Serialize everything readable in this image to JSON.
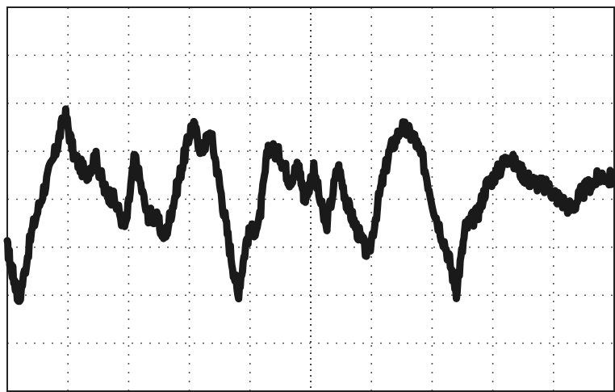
{
  "chart_data": {
    "type": "line",
    "grid": {
      "visible": true,
      "style": "dotted",
      "x_divisions": 10,
      "y_divisions": 8
    },
    "xlim": [
      0,
      10
    ],
    "ylim": [
      -4,
      4
    ],
    "series": [
      {
        "color": "#1a1a1a",
        "x": [
          0,
          0.1,
          0.2,
          0.4,
          0.6,
          0.8,
          0.95,
          1.1,
          1.3,
          1.45,
          1.6,
          1.75,
          1.95,
          2.1,
          2.3,
          2.45,
          2.6,
          2.75,
          2.9,
          3.05,
          3.2,
          3.35,
          3.5,
          3.65,
          3.8,
          3.95,
          4.15,
          4.3,
          4.5,
          4.65,
          4.8,
          4.9,
          5.05,
          5.25,
          5.45,
          5.6,
          5.75,
          5.95,
          6.15,
          6.3,
          6.5,
          6.7,
          6.85,
          7.05,
          7.25,
          7.4,
          7.55,
          7.75,
          7.9,
          8.1,
          8.25,
          8.45,
          8.6,
          8.8,
          8.95,
          9.1,
          9.3,
          9.45,
          9.6,
          9.8,
          10.0
        ],
        "values": [
          -1.0,
          -1.6,
          -2.1,
          -0.7,
          0.2,
          1.0,
          1.8,
          0.9,
          0.5,
          0.9,
          0.2,
          0.0,
          -0.6,
          0.9,
          -0.3,
          -0.4,
          -0.8,
          0.0,
          0.8,
          1.6,
          1.0,
          1.4,
          0.3,
          -0.9,
          -2.0,
          -0.8,
          -0.5,
          1.1,
          0.9,
          0.4,
          0.7,
          0.0,
          0.6,
          -0.6,
          0.7,
          -0.1,
          -0.6,
          -1.2,
          0.2,
          1.0,
          1.5,
          1.3,
          0.8,
          -0.3,
          -1.1,
          -1.9,
          -0.6,
          -0.3,
          0.3,
          0.6,
          0.9,
          0.6,
          0.4,
          0.3,
          0.2,
          0.0,
          -0.2,
          0.1,
          0.3,
          0.5,
          0.4
        ]
      }
    ]
  }
}
